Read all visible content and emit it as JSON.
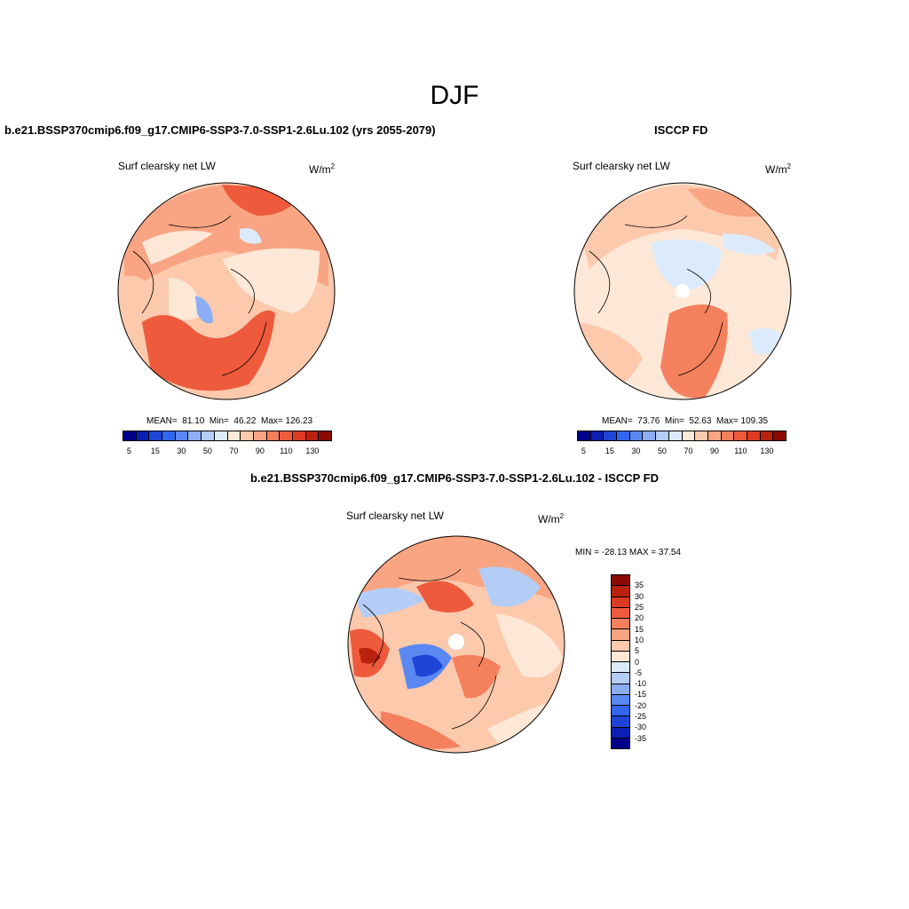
{
  "figure": {
    "title": "DJF"
  },
  "panel_model": {
    "case_title": "b.e21.BSSP370cmip6.f09_g17.CMIP6-SSP3-7.0-SSP1-2.6Lu.102 (yrs 2055-2079)",
    "field_label": "Surf clearsky net LW",
    "units_base": "W/m",
    "units_sup": "2",
    "stats": {
      "mean_label": "MEAN=",
      "mean": "81.10",
      "min_label": "Min=",
      "min": "46.22",
      "max_label": "Max=",
      "max": "126.23"
    }
  },
  "panel_obs": {
    "case_title": "ISCCP FD",
    "field_label": "Surf clearsky net LW",
    "units_base": "W/m",
    "units_sup": "2",
    "stats": {
      "mean_label": "MEAN=",
      "mean": "73.76",
      "min_label": "Min=",
      "min": "52.63",
      "max_label": "Max=",
      "max": "109.35"
    }
  },
  "panel_diff": {
    "case_title": "b.e21.BSSP370cmip6.f09_g17.CMIP6-SSP3-7.0-SSP1-2.6Lu.102 - ISCCP FD",
    "field_label": "Surf clearsky net LW",
    "units_base": "W/m",
    "units_sup": "2",
    "minmax_label": "MIN = -28.13 MAX =  37.54"
  },
  "colorbar_abs": {
    "colors": [
      "#00008b",
      "#0a1fb4",
      "#1f45d6",
      "#3366ee",
      "#5a88f2",
      "#8cadf4",
      "#b4cdf6",
      "#dcebfb",
      "#fde7d6",
      "#fcc9ad",
      "#f9a583",
      "#f5805e",
      "#ee5a3c",
      "#dd3a22",
      "#b8220f",
      "#8b0a06"
    ],
    "tick_labels": [
      "5",
      "15",
      "30",
      "50",
      "70",
      "90",
      "110",
      "130"
    ]
  },
  "colorbar_diff": {
    "colors": [
      "#8b0a06",
      "#b8220f",
      "#dd3a22",
      "#ee5a3c",
      "#f5805e",
      "#f9a583",
      "#fcc9ad",
      "#fde7d6",
      "#dcebfb",
      "#b4cdf6",
      "#8cadf4",
      "#5a88f2",
      "#3366ee",
      "#1f45d6",
      "#0a1fb4",
      "#00008b"
    ],
    "tick_labels": [
      "35",
      "30",
      "25",
      "20",
      "15",
      "10",
      "5",
      "0",
      "-5",
      "-10",
      "-15",
      "-20",
      "-25",
      "-30",
      "-35"
    ]
  }
}
